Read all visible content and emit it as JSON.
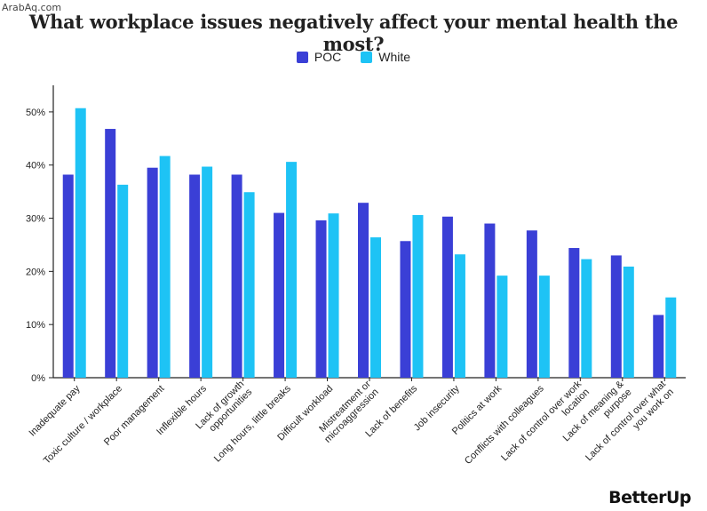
{
  "watermark": "ArabAq.com",
  "logo": "BetterUp",
  "chart_data": {
    "type": "bar",
    "title": "What workplace issues negatively affect your mental health the most?",
    "categories": [
      [
        "Inadequate pay"
      ],
      [
        "Toxic culture / workplace"
      ],
      [
        "Poor management"
      ],
      [
        "Inflexible hours"
      ],
      [
        "Lack of growth",
        "opportunities"
      ],
      [
        "Long hours, little breaks"
      ],
      [
        "Difficult workload"
      ],
      [
        "Mistreatment or",
        "microaggression"
      ],
      [
        "Lack of benefits"
      ],
      [
        "Job insecurity"
      ],
      [
        "Politics at work"
      ],
      [
        "Conflicts with colleagues"
      ],
      [
        "Lack of control over work",
        "location"
      ],
      [
        "Lack of meaning &",
        "purpose"
      ],
      [
        "Lack of control over what",
        "you work on"
      ]
    ],
    "series": [
      {
        "name": "POC",
        "color": "#3a3fd6",
        "values": [
          38.2,
          46.8,
          39.5,
          38.2,
          38.2,
          31.0,
          29.6,
          32.9,
          25.7,
          30.3,
          29.0,
          27.7,
          24.4,
          23.0,
          11.8
        ]
      },
      {
        "name": "White",
        "color": "#1ec3f5",
        "values": [
          50.7,
          36.3,
          41.7,
          39.7,
          34.9,
          40.6,
          30.9,
          26.4,
          30.6,
          23.2,
          19.2,
          19.2,
          22.3,
          20.9,
          15.1
        ]
      }
    ],
    "ylim": [
      0,
      55
    ],
    "yticks": [
      0,
      10,
      20,
      30,
      40,
      50
    ],
    "ytick_suffix": "%",
    "grid": false,
    "legend_position": "top-center"
  }
}
